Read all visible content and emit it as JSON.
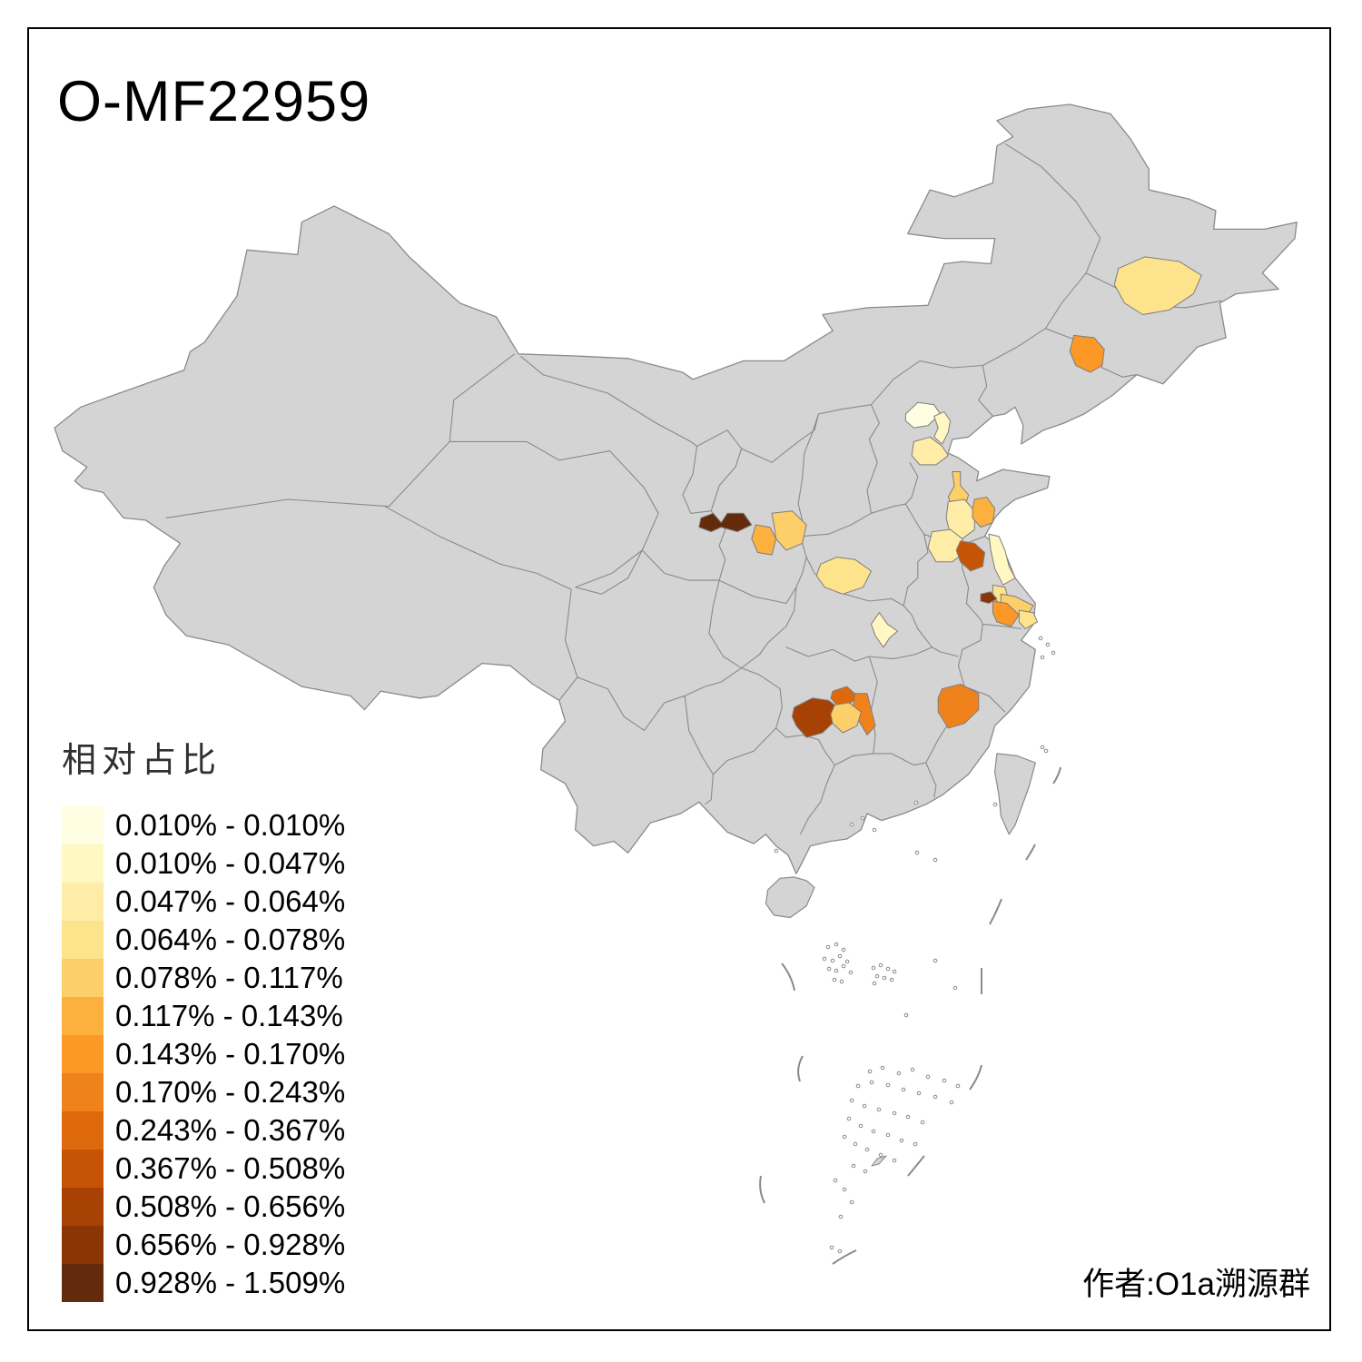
{
  "title": "O-MF22959",
  "legend": {
    "title": "相对占比",
    "classes": [
      {
        "label": "0.010% - 0.010%",
        "color": "#FFFEE3"
      },
      {
        "label": "0.010% - 0.047%",
        "color": "#FFF8C2"
      },
      {
        "label": "0.047% - 0.064%",
        "color": "#FEECA7"
      },
      {
        "label": "0.064% - 0.078%",
        "color": "#FDE38C"
      },
      {
        "label": "0.078% - 0.117%",
        "color": "#FDCF6A"
      },
      {
        "label": "0.117% - 0.143%",
        "color": "#FCB13F"
      },
      {
        "label": "0.143% - 0.170%",
        "color": "#FB9826"
      },
      {
        "label": "0.170% - 0.243%",
        "color": "#F0821C"
      },
      {
        "label": "0.243% - 0.367%",
        "color": "#DE690D"
      },
      {
        "label": "0.367% - 0.508%",
        "color": "#C75405"
      },
      {
        "label": "0.508% - 0.656%",
        "color": "#A84104"
      },
      {
        "label": "0.656% - 0.928%",
        "color": "#8A3503"
      },
      {
        "label": "0.928% - 1.509%",
        "color": "#642A0C"
      }
    ]
  },
  "attribution": "作者:O1a溯源群",
  "map": {
    "land_color": "#D4D4D4",
    "border_color": "#8A8A8A",
    "sea_color": "#FFFFFF",
    "regions": [
      {
        "id": "heilongjiang-region",
        "class_index": 4
      },
      {
        "id": "jilin-region",
        "class_index": 7
      },
      {
        "id": "beijing-region",
        "class_index": 1
      },
      {
        "id": "tianjin-region",
        "class_index": 2
      },
      {
        "id": "hebei-coastal-region",
        "class_index": 3
      },
      {
        "id": "shandong-central-region",
        "class_index": 5
      },
      {
        "id": "shandong-south-region",
        "class_index": 3
      },
      {
        "id": "shandong-east-region",
        "class_index": 6
      },
      {
        "id": "jiangsu-northwest-region",
        "class_index": 3
      },
      {
        "id": "jiangsu-north-region",
        "class_index": 10
      },
      {
        "id": "jiangsu-coastal-region",
        "class_index": 2
      },
      {
        "id": "jiangsu-middle-region",
        "class_index": 4
      },
      {
        "id": "jiangsu-southeast-region",
        "class_index": 5
      },
      {
        "id": "jiangsu-south-small-region",
        "class_index": 12
      },
      {
        "id": "jiangsu-taihu-region",
        "class_index": 7
      },
      {
        "id": "shanghai-region",
        "class_index": 4
      },
      {
        "id": "gansu-east-region",
        "class_index": 13
      },
      {
        "id": "shaanxi-central-region",
        "class_index": 6
      },
      {
        "id": "shaanxi-east-region",
        "class_index": 5
      },
      {
        "id": "henan-southwest-region",
        "class_index": 4
      },
      {
        "id": "hubei-east-region",
        "class_index": 2
      },
      {
        "id": "hunan-southwest-region",
        "class_index": 11
      },
      {
        "id": "hunan-central-region",
        "class_index": 9
      },
      {
        "id": "hunan-east-region",
        "class_index": 8
      },
      {
        "id": "hunan-south-region",
        "class_index": 5
      },
      {
        "id": "fujian-north-region",
        "class_index": 8
      }
    ]
  }
}
